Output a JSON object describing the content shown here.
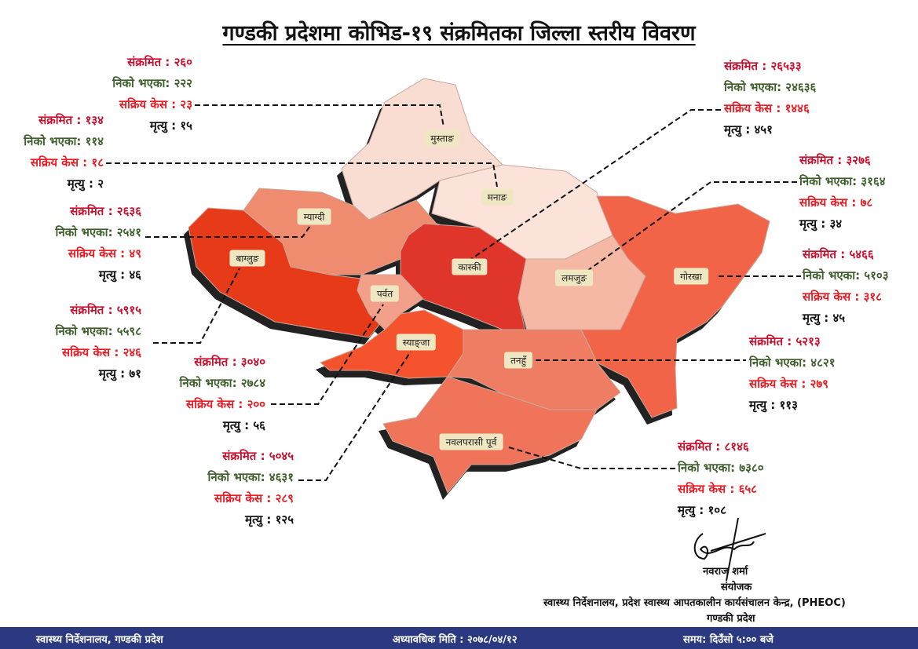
{
  "title": "गण्डकी प्रदेशमा कोभिड-१९ संक्रमितका जिल्ला स्तरीय विवरण",
  "stat_labels": {
    "infected": "संक्रमित :",
    "recovered": "निको भएका:",
    "active": "सक्रिय केस :",
    "deaths": "मृत्यु :"
  },
  "districts": [
    {
      "name": "मुस्ताङ",
      "infected": "२६०",
      "recovered": "२२२",
      "active": "२३",
      "deaths": "१५",
      "color": "#f9ddd3"
    },
    {
      "name": "मनाङ",
      "infected": "१३४",
      "recovered": "११४",
      "active": "१८",
      "deaths": "२",
      "color": "#fbe3da"
    },
    {
      "name": "म्याग्दी",
      "infected": "२६३६",
      "recovered": "२५४१",
      "active": "४९",
      "deaths": "४६",
      "color": "#ef8c70"
    },
    {
      "name": "बाग्लुङ",
      "infected": "५९१५",
      "recovered": "५५९८",
      "active": "२४६",
      "deaths": "७१",
      "color": "#e63a18"
    },
    {
      "name": "पर्वत",
      "infected": "३०४०",
      "recovered": "२७८४",
      "active": "२००",
      "deaths": "५६",
      "color": "#f2a08a"
    },
    {
      "name": "स्याङ्जा",
      "infected": "५०४५",
      "recovered": "४६३१",
      "active": "२८९",
      "deaths": "१२५",
      "color": "#f5532e"
    },
    {
      "name": "कास्की",
      "infected": "२६५३३",
      "recovered": "२४६३६",
      "active": "१४४६",
      "deaths": "४५१",
      "color": "#e0352b"
    },
    {
      "name": "लमजुङ",
      "infected": "३२७६",
      "recovered": "३१६४",
      "active": "७८",
      "deaths": "३४",
      "color": "#f4b8a4"
    },
    {
      "name": "गोरखा",
      "infected": "५४६६",
      "recovered": "५१०३",
      "active": "३१८",
      "deaths": "४५",
      "color": "#f26448"
    },
    {
      "name": "तनहुँ",
      "infected": "५२१३",
      "recovered": "४८२१",
      "active": "२७९",
      "deaths": "११३",
      "color": "#ee7d63"
    },
    {
      "name": "नवलपरासी पूर्व",
      "infected": "८१४६",
      "recovered": "७३८०",
      "active": "६५८",
      "deaths": "१०८",
      "color": "#ef7459"
    }
  ],
  "signature": {
    "name": "नवराज शर्मा",
    "role": "संयोजक",
    "office": "स्वास्थ्य निर्देशनालय, प्रदेश स्वास्थ्य आपतकालीन कार्यसंचालन केन्द्र, (PHEOC)",
    "province": "गण्डकी प्रदेश"
  },
  "footer": {
    "left": "स्वास्थ्य निर्देशनालय, गण्डकी प्रदेश",
    "date": "अध्यावधिक मिति : २०७८/०४/१२",
    "time": "समय: दिउँसो ५:०० बजे",
    "background": "#2a3980"
  }
}
